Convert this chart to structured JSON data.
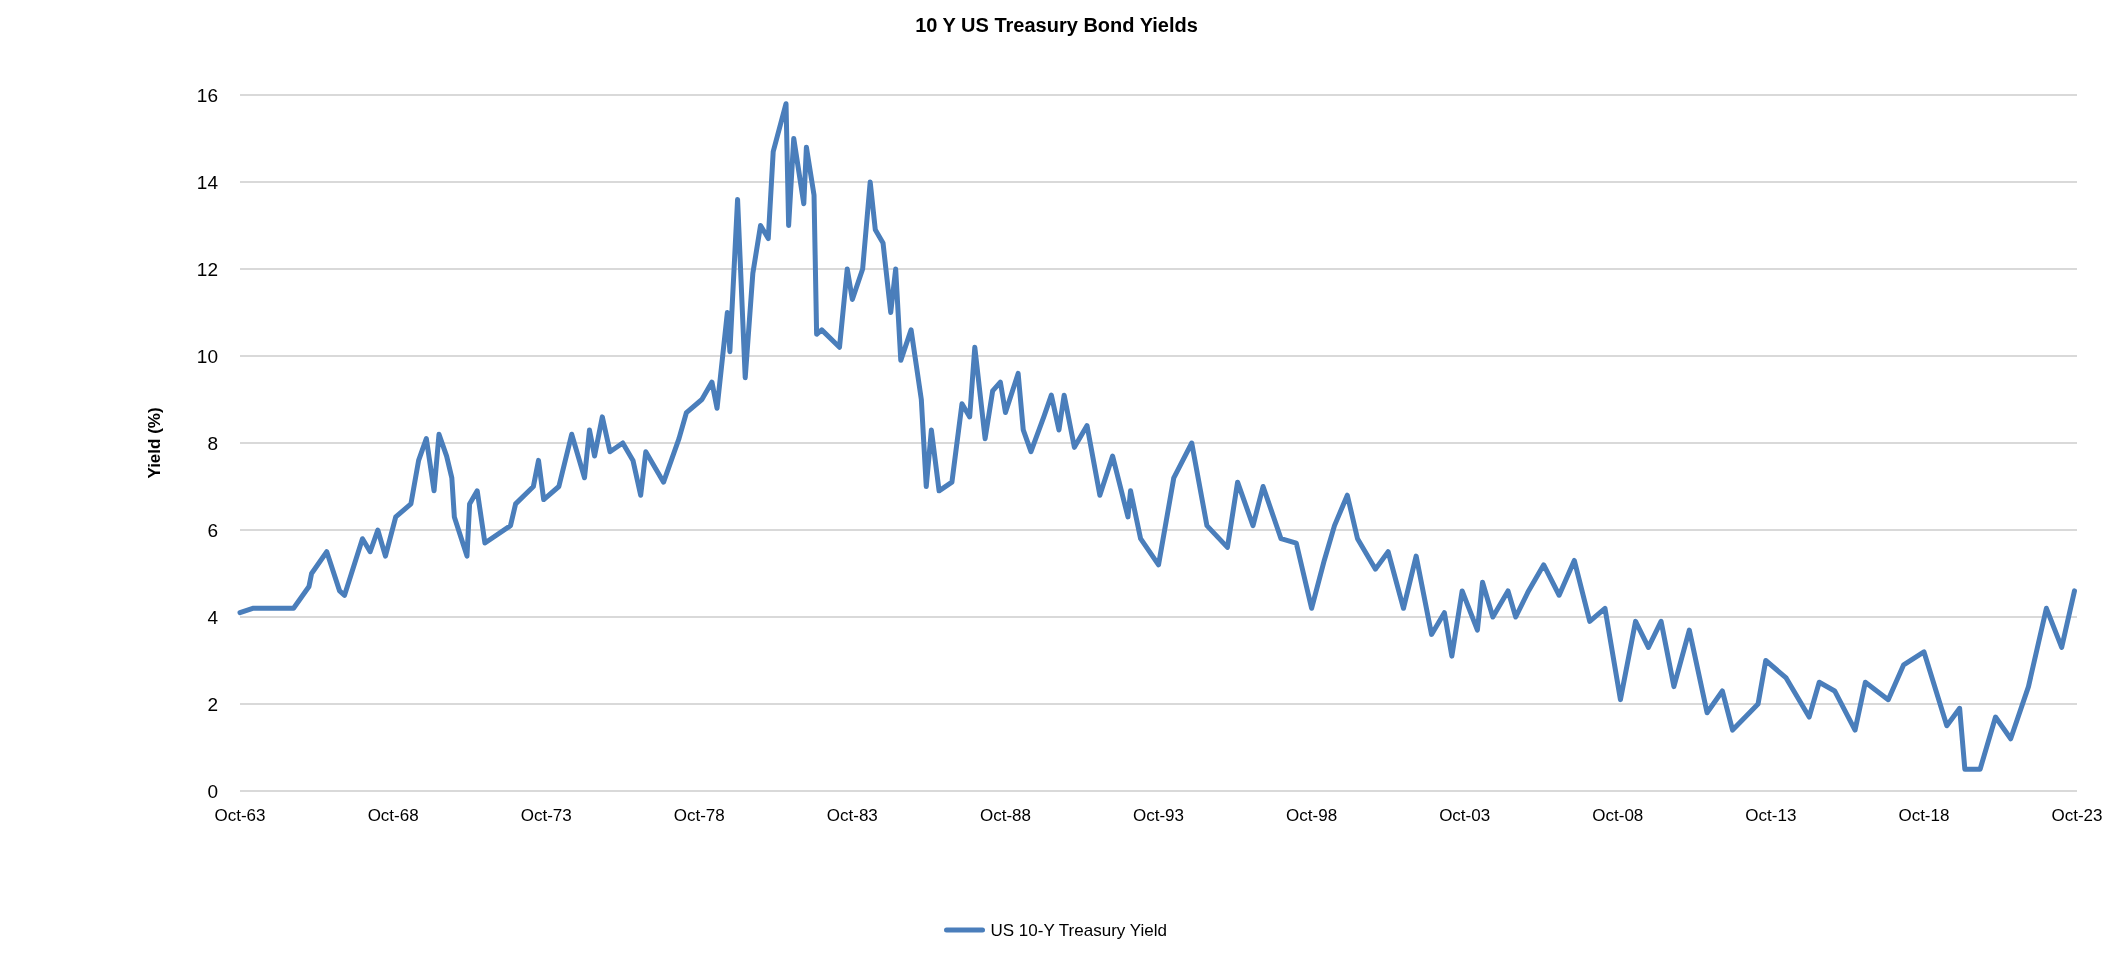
{
  "chart_data": {
    "type": "line",
    "title": "10 Y US Treasury Bond Yields",
    "ylabel": "Yield (%)",
    "x": [
      "1963-10",
      "1964-03",
      "1965-07",
      "1966-01",
      "1966-02",
      "1966-08",
      "1967-01",
      "1967-03",
      "1967-10",
      "1968-01",
      "1968-04",
      "1968-07",
      "1968-11",
      "1969-05",
      "1969-08",
      "1969-11",
      "1970-02",
      "1970-04",
      "1970-07",
      "1970-09",
      "1970-10",
      "1971-03",
      "1971-04",
      "1971-07",
      "1971-10",
      "1972-08",
      "1972-10",
      "1973-05",
      "1973-07",
      "1973-09",
      "1974-03",
      "1974-08",
      "1975-01",
      "1975-03",
      "1975-05",
      "1975-08",
      "1975-11",
      "1976-04",
      "1976-08",
      "1976-11",
      "1977-01",
      "1977-08",
      "1978-02",
      "1978-05",
      "1978-11",
      "1979-03",
      "1979-05",
      "1979-09",
      "1979-10",
      "1980-01",
      "1980-04",
      "1980-07",
      "1980-10",
      "1981-01",
      "1981-03",
      "1981-08",
      "1981-09",
      "1981-11",
      "1982-03",
      "1982-04",
      "1982-07",
      "1982-08",
      "1982-10",
      "1983-05",
      "1983-08",
      "1983-10",
      "1984-02",
      "1984-05",
      "1984-07",
      "1984-10",
      "1985-01",
      "1985-03",
      "1985-05",
      "1985-09",
      "1985-11",
      "1986-01",
      "1986-03",
      "1986-05",
      "1986-08",
      "1987-01",
      "1987-05",
      "1987-08",
      "1987-10",
      "1988-02",
      "1988-05",
      "1988-08",
      "1988-10",
      "1989-03",
      "1989-05",
      "1989-08",
      "1990-01",
      "1990-04",
      "1990-07",
      "1990-09",
      "1991-01",
      "1991-06",
      "1991-11",
      "1992-04",
      "1992-10",
      "1992-11",
      "1993-03",
      "1993-10",
      "1994-04",
      "1994-11",
      "1995-05",
      "1996-01",
      "1996-05",
      "1996-11",
      "1997-03",
      "1997-10",
      "1998-04",
      "1998-10",
      "1999-03",
      "1999-07",
      "1999-12",
      "2000-04",
      "2000-11",
      "2001-04",
      "2001-10",
      "2002-03",
      "2002-09",
      "2003-02",
      "2003-05",
      "2003-09",
      "2004-03",
      "2004-05",
      "2004-09",
      "2005-03",
      "2005-06",
      "2005-11",
      "2006-05",
      "2006-11",
      "2007-05",
      "2007-11",
      "2008-05",
      "2008-11",
      "2009-05",
      "2009-10",
      "2010-03",
      "2010-08",
      "2011-02",
      "2011-09",
      "2012-03",
      "2012-07",
      "2013-05",
      "2013-08",
      "2014-04",
      "2015-01",
      "2015-05",
      "2015-11",
      "2016-07",
      "2016-11",
      "2017-08",
      "2018-02",
      "2018-10",
      "2019-07",
      "2019-12",
      "2020-02",
      "2020-08",
      "2021-02",
      "2021-08",
      "2022-03",
      "2022-10",
      "2023-04",
      "2023-09"
    ],
    "series": [
      {
        "name": "US 10-Y Treasury Yield",
        "color": "#4a7ebb",
        "values": [
          4.1,
          4.2,
          4.2,
          4.7,
          5.0,
          5.5,
          4.6,
          4.5,
          5.8,
          5.5,
          6.0,
          5.4,
          6.3,
          6.6,
          7.6,
          8.1,
          6.9,
          8.2,
          7.7,
          7.2,
          6.3,
          5.4,
          6.6,
          6.9,
          5.7,
          6.1,
          6.6,
          7.0,
          7.6,
          6.7,
          7.0,
          8.2,
          7.2,
          8.3,
          7.7,
          8.6,
          7.8,
          8.0,
          7.6,
          6.8,
          7.8,
          7.1,
          8.1,
          8.7,
          9.0,
          9.4,
          8.8,
          11.0,
          10.1,
          13.6,
          9.5,
          11.9,
          13.0,
          12.7,
          14.7,
          15.8,
          13.0,
          15.0,
          13.5,
          14.8,
          13.7,
          10.5,
          10.6,
          10.2,
          12.0,
          11.3,
          12.0,
          14.0,
          12.9,
          12.6,
          11.0,
          12.0,
          9.9,
          10.6,
          9.8,
          9.0,
          7.0,
          8.3,
          6.9,
          7.1,
          8.9,
          8.6,
          10.2,
          8.1,
          9.2,
          9.4,
          8.7,
          9.6,
          8.3,
          7.8,
          8.6,
          9.1,
          8.3,
          9.1,
          7.9,
          8.4,
          6.8,
          7.7,
          6.3,
          6.9,
          5.8,
          5.2,
          7.2,
          8.0,
          6.1,
          5.6,
          7.1,
          6.1,
          7.0,
          5.8,
          5.7,
          4.2,
          5.3,
          6.1,
          6.8,
          5.8,
          5.1,
          5.5,
          4.2,
          5.4,
          3.6,
          4.1,
          3.1,
          4.6,
          3.7,
          4.8,
          4.0,
          4.6,
          4.0,
          4.6,
          5.2,
          4.5,
          5.3,
          3.9,
          4.2,
          2.1,
          3.9,
          3.3,
          3.9,
          2.4,
          3.7,
          1.8,
          2.3,
          1.4,
          2.0,
          3.0,
          2.6,
          1.7,
          2.5,
          2.3,
          1.4,
          2.5,
          2.1,
          2.9,
          3.2,
          1.5,
          1.9,
          0.5,
          0.5,
          1.7,
          1.2,
          2.4,
          4.2,
          3.3,
          4.6
        ]
      }
    ],
    "xlim": [
      "1963-10",
      "2023-10"
    ],
    "xticks": [
      {
        "value": "1963-10",
        "label": "Oct-63"
      },
      {
        "value": "1968-10",
        "label": "Oct-68"
      },
      {
        "value": "1973-10",
        "label": "Oct-73"
      },
      {
        "value": "1978-10",
        "label": "Oct-78"
      },
      {
        "value": "1983-10",
        "label": "Oct-83"
      },
      {
        "value": "1988-10",
        "label": "Oct-88"
      },
      {
        "value": "1993-10",
        "label": "Oct-93"
      },
      {
        "value": "1998-10",
        "label": "Oct-98"
      },
      {
        "value": "2003-10",
        "label": "Oct-03"
      },
      {
        "value": "2008-10",
        "label": "Oct-08"
      },
      {
        "value": "2013-10",
        "label": "Oct-13"
      },
      {
        "value": "2018-10",
        "label": "Oct-18"
      },
      {
        "value": "2023-10",
        "label": "Oct-23"
      }
    ],
    "ylim": [
      0,
      16
    ],
    "yticks": [
      0,
      2,
      4,
      6,
      8,
      10,
      12,
      14,
      16
    ],
    "grid": "y",
    "legend": "bottom",
    "line_style": "solid"
  }
}
